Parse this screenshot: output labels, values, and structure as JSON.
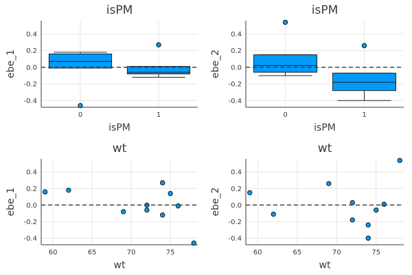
{
  "chart_data": [
    {
      "type": "box",
      "title": "isPM",
      "xlabel": "isPM",
      "ylabel": "ebe_1",
      "xticks": [
        "0",
        "1"
      ],
      "ylim": [
        -0.48,
        0.56
      ],
      "yticks": [
        "0.4",
        "0.2",
        "0.0",
        "-0.2",
        "-0.4"
      ],
      "groups": [
        {
          "x": "0",
          "whisker_low": -0.01,
          "q1": -0.01,
          "median": 0.07,
          "q3": 0.16,
          "whisker_high": 0.18,
          "outliers": [
            -0.46
          ]
        },
        {
          "x": "1",
          "whisker_low": -0.12,
          "q1": -0.08,
          "median": -0.06,
          "q3": 0.01,
          "whisker_high": 0.01,
          "outliers": [
            0.27
          ]
        }
      ]
    },
    {
      "type": "box",
      "title": "isPM",
      "xlabel": "isPM",
      "ylabel": "ebe_2",
      "xticks": [
        "0",
        "1"
      ],
      "ylim": [
        -0.48,
        0.56
      ],
      "yticks": [
        "0.4",
        "0.2",
        "0.0",
        "-0.2",
        "-0.4"
      ],
      "groups": [
        {
          "x": "0",
          "whisker_low": -0.1,
          "q1": -0.06,
          "median": 0.02,
          "q3": 0.15,
          "whisker_high": 0.15,
          "outliers": [
            0.54
          ]
        },
        {
          "x": "1",
          "whisker_low": -0.4,
          "q1": -0.28,
          "median": -0.18,
          "q3": -0.07,
          "whisker_high": -0.07,
          "outliers": [
            0.26
          ]
        }
      ]
    },
    {
      "type": "scatter",
      "title": "wt",
      "xlabel": "wt",
      "ylabel": "ebe_1",
      "xlim": [
        58.5,
        78.5
      ],
      "xticks": [
        "60",
        "65",
        "70",
        "75"
      ],
      "ylim": [
        -0.48,
        0.56
      ],
      "yticks": [
        "0.4",
        "0.2",
        "0.0",
        "-0.2",
        "-0.4"
      ],
      "x": [
        59,
        62,
        69,
        72,
        72,
        74,
        74,
        75,
        76,
        78
      ],
      "y": [
        0.16,
        0.18,
        -0.08,
        0.0,
        -0.06,
        0.27,
        -0.12,
        0.14,
        -0.01,
        -0.46
      ]
    },
    {
      "type": "scatter",
      "title": "wt",
      "xlabel": "wt",
      "ylabel": "ebe_2",
      "xlim": [
        58.5,
        78.5
      ],
      "xticks": [
        "60",
        "65",
        "70",
        "75"
      ],
      "ylim": [
        -0.48,
        0.56
      ],
      "yticks": [
        "0.4",
        "0.2",
        "0.0",
        "-0.2",
        "-0.4"
      ],
      "x": [
        59,
        62,
        69,
        72,
        72,
        74,
        74,
        75,
        76,
        78
      ],
      "y": [
        0.15,
        -0.11,
        0.26,
        0.03,
        -0.18,
        -0.24,
        -0.4,
        -0.06,
        0.01,
        0.54
      ]
    }
  ]
}
